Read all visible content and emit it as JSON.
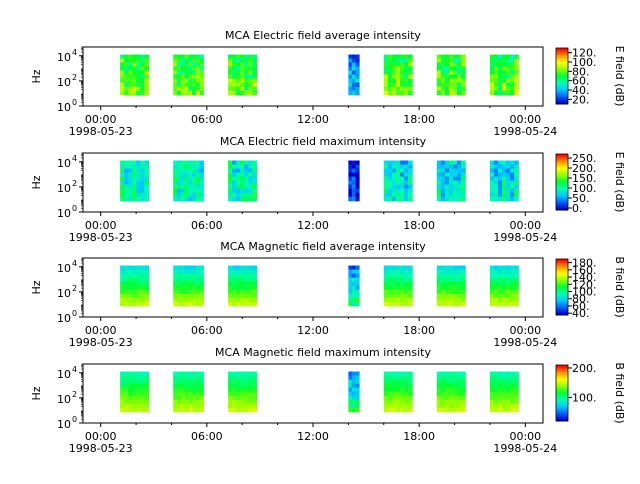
{
  "colors": {
    "axis": "#000000",
    "spectrum": [
      "#0000cc",
      "#0060ff",
      "#00c8ff",
      "#00ffb0",
      "#00ff30",
      "#90ff00",
      "#ffff00",
      "#ff9000",
      "#ff0000"
    ]
  },
  "chart_data": [
    {
      "type": "heatmap",
      "title": "MCA  Electric field average intensity",
      "ylabel": "Hz",
      "yscale": "log",
      "ylim": [
        1,
        50000
      ],
      "y_ticks": [
        "10",
        "10",
        "10"
      ],
      "y_tick_exps": [
        "0",
        "2",
        "4"
      ],
      "x_ticks": [
        "00:00",
        "06:00",
        "12:00",
        "18:00",
        "00:00"
      ],
      "x_dates": [
        "1998-05-23",
        "1998-05-24"
      ],
      "xlim_hours": [
        -1,
        25
      ],
      "colorbar": {
        "label": "E field (dB)",
        "range": [
          10,
          130
        ],
        "ticks": [
          "20.",
          "40.",
          "60.",
          "80.",
          "100.",
          "120."
        ],
        "tick_values": [
          20,
          40,
          60,
          80,
          100,
          120
        ]
      },
      "data_intervals": [
        {
          "start": 1.1,
          "end": 2.7,
          "level_low": 0.55,
          "level_high": 0.45,
          "style": "stripes"
        },
        {
          "start": 4.1,
          "end": 5.8,
          "level_low": 0.55,
          "level_high": 0.45,
          "style": "stripes"
        },
        {
          "start": 7.2,
          "end": 8.8,
          "level_low": 0.55,
          "level_high": 0.45,
          "style": "stripes"
        },
        {
          "start": 14.0,
          "end": 14.6,
          "level_low": 0.25,
          "level_high": 0.15,
          "style": "burst"
        },
        {
          "start": 16.0,
          "end": 17.6,
          "level_low": 0.55,
          "level_high": 0.45,
          "style": "stripes"
        },
        {
          "start": 19.0,
          "end": 20.6,
          "level_low": 0.55,
          "level_high": 0.45,
          "style": "stripes"
        },
        {
          "start": 22.0,
          "end": 23.6,
          "level_low": 0.55,
          "level_high": 0.45,
          "style": "stripes"
        }
      ]
    },
    {
      "type": "heatmap",
      "title": "MCA  Electric field maximum intensity",
      "ylabel": "Hz",
      "yscale": "log",
      "ylim": [
        1,
        50000
      ],
      "y_ticks": [
        "10",
        "10",
        "10"
      ],
      "y_tick_exps": [
        "0",
        "2",
        "4"
      ],
      "x_ticks": [
        "00:00",
        "06:00",
        "12:00",
        "18:00",
        "00:00"
      ],
      "x_dates": [
        "1998-05-23",
        "1998-05-24"
      ],
      "xlim_hours": [
        -1,
        25
      ],
      "colorbar": {
        "label": "E field (dB)",
        "range": [
          -10,
          270
        ],
        "ticks": [
          "0.",
          "50.",
          "100.",
          "150.",
          "200.",
          "250."
        ],
        "tick_values": [
          0,
          50,
          100,
          150,
          200,
          250
        ]
      },
      "data_intervals": [
        {
          "start": 1.1,
          "end": 2.7,
          "level_low": 0.35,
          "level_high": 0.3,
          "style": "stripes"
        },
        {
          "start": 4.1,
          "end": 5.8,
          "level_low": 0.35,
          "level_high": 0.3,
          "style": "stripes"
        },
        {
          "start": 7.2,
          "end": 8.8,
          "level_low": 0.35,
          "level_high": 0.3,
          "style": "stripes"
        },
        {
          "start": 14.0,
          "end": 14.6,
          "level_low": 0.1,
          "level_high": 0.05,
          "style": "burst"
        },
        {
          "start": 16.0,
          "end": 17.6,
          "level_low": 0.3,
          "level_high": 0.25,
          "style": "stripes"
        },
        {
          "start": 19.0,
          "end": 20.6,
          "level_low": 0.3,
          "level_high": 0.25,
          "style": "stripes"
        },
        {
          "start": 22.0,
          "end": 23.6,
          "level_low": 0.3,
          "level_high": 0.25,
          "style": "stripes"
        }
      ]
    },
    {
      "type": "heatmap",
      "title": "MCA  Magnetic field average intensity",
      "ylabel": "Hz",
      "yscale": "log",
      "ylim": [
        1,
        50000
      ],
      "y_ticks": [
        "10",
        "10",
        "10"
      ],
      "y_tick_exps": [
        "0",
        "2",
        "4"
      ],
      "x_ticks": [
        "00:00",
        "06:00",
        "12:00",
        "18:00",
        "00:00"
      ],
      "x_dates": [
        "1998-05-23",
        "1998-05-24"
      ],
      "xlim_hours": [
        -1,
        25
      ],
      "colorbar": {
        "label": "B field (dB)",
        "range": [
          35,
          190
        ],
        "ticks": [
          "40.",
          "60.",
          "80.",
          "100.",
          "120.",
          "140.",
          "160.",
          "180."
        ],
        "tick_values": [
          40,
          60,
          80,
          100,
          120,
          140,
          160,
          180
        ]
      },
      "data_intervals": [
        {
          "start": 1.1,
          "end": 2.7,
          "level_low": 0.68,
          "level_high": 0.3,
          "style": "layers"
        },
        {
          "start": 4.1,
          "end": 5.8,
          "level_low": 0.68,
          "level_high": 0.3,
          "style": "layers"
        },
        {
          "start": 7.2,
          "end": 8.8,
          "level_low": 0.68,
          "level_high": 0.3,
          "style": "layers"
        },
        {
          "start": 14.0,
          "end": 14.6,
          "level_low": 0.45,
          "level_high": 0.15,
          "style": "burst"
        },
        {
          "start": 16.0,
          "end": 17.6,
          "level_low": 0.68,
          "level_high": 0.3,
          "style": "layers"
        },
        {
          "start": 19.0,
          "end": 20.6,
          "level_low": 0.68,
          "level_high": 0.3,
          "style": "layers"
        },
        {
          "start": 22.0,
          "end": 23.6,
          "level_low": 0.68,
          "level_high": 0.3,
          "style": "layers"
        }
      ]
    },
    {
      "type": "heatmap",
      "title": "MCA  Magnetic field maximum intensity",
      "ylabel": "Hz",
      "yscale": "log",
      "ylim": [
        1,
        50000
      ],
      "y_ticks": [
        "10",
        "10",
        "10"
      ],
      "y_tick_exps": [
        "0",
        "2",
        "4"
      ],
      "x_ticks": [
        "00:00",
        "06:00",
        "12:00",
        "18:00",
        "00:00"
      ],
      "x_dates": [
        "1998-05-23",
        "1998-05-24"
      ],
      "xlim_hours": [
        -1,
        25
      ],
      "colorbar": {
        "label": "B field (dB)",
        "range": [
          20,
          210
        ],
        "ticks": [
          "100.",
          "200."
        ],
        "tick_values": [
          100,
          200
        ]
      },
      "data_intervals": [
        {
          "start": 1.1,
          "end": 2.7,
          "level_low": 0.68,
          "level_high": 0.38,
          "style": "layers"
        },
        {
          "start": 4.1,
          "end": 5.8,
          "level_low": 0.68,
          "level_high": 0.38,
          "style": "layers"
        },
        {
          "start": 7.2,
          "end": 8.8,
          "level_low": 0.68,
          "level_high": 0.38,
          "style": "layers"
        },
        {
          "start": 14.0,
          "end": 14.6,
          "level_low": 0.45,
          "level_high": 0.15,
          "style": "burst"
        },
        {
          "start": 16.0,
          "end": 17.6,
          "level_low": 0.68,
          "level_high": 0.38,
          "style": "layers"
        },
        {
          "start": 19.0,
          "end": 20.6,
          "level_low": 0.68,
          "level_high": 0.38,
          "style": "layers"
        },
        {
          "start": 22.0,
          "end": 23.6,
          "level_low": 0.68,
          "level_high": 0.38,
          "style": "layers"
        }
      ]
    }
  ]
}
